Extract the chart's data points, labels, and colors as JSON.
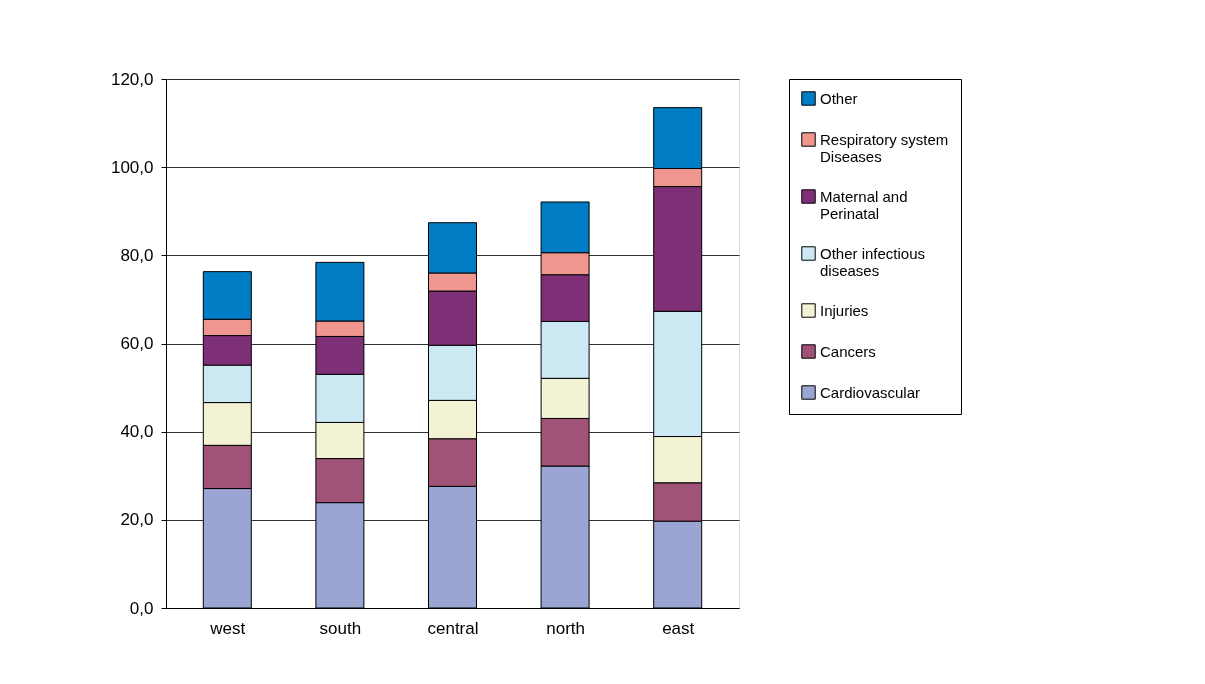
{
  "chart_data": {
    "type": "bar",
    "stacked": true,
    "legend": "right",
    "grid": "y",
    "categories": [
      "west",
      "south",
      "central",
      "north",
      "east"
    ],
    "ylim": [
      0,
      120
    ],
    "yticks": [
      {
        "value": 0,
        "label": "0,0"
      },
      {
        "value": 20,
        "label": "20,0"
      },
      {
        "value": 40,
        "label": "40,0"
      },
      {
        "value": 60,
        "label": "60,0"
      },
      {
        "value": 80,
        "label": "80,0"
      },
      {
        "value": 100,
        "label": "100,0"
      },
      {
        "value": 120,
        "label": "120,0"
      }
    ],
    "series": [
      {
        "name": "Cardiovascular",
        "color": "#9aa5d3",
        "values": [
          27.1,
          23.9,
          27.6,
          32.2,
          19.7
        ]
      },
      {
        "name": "Cancers",
        "color": "#a05377",
        "values": [
          9.8,
          10.0,
          10.8,
          10.8,
          8.7
        ]
      },
      {
        "name": "Injuries",
        "color": "#f3f2d5",
        "values": [
          9.7,
          8.2,
          8.7,
          9.1,
          10.5
        ]
      },
      {
        "name": "Other infectious diseases",
        "color": "#cce8f3",
        "values": [
          8.5,
          10.9,
          12.5,
          12.9,
          28.4
        ]
      },
      {
        "name": "Maternal and Perinatal",
        "color": "#7e3077",
        "values": [
          6.7,
          8.6,
          12.3,
          10.6,
          28.3
        ]
      },
      {
        "name": "Respiratory system Diseases",
        "color": "#ef968f",
        "values": [
          3.7,
          3.5,
          4.1,
          5.0,
          4.1
        ]
      },
      {
        "name": "Other",
        "color": "#007dc5",
        "values": [
          10.8,
          13.3,
          11.4,
          11.5,
          13.8
        ]
      }
    ]
  }
}
